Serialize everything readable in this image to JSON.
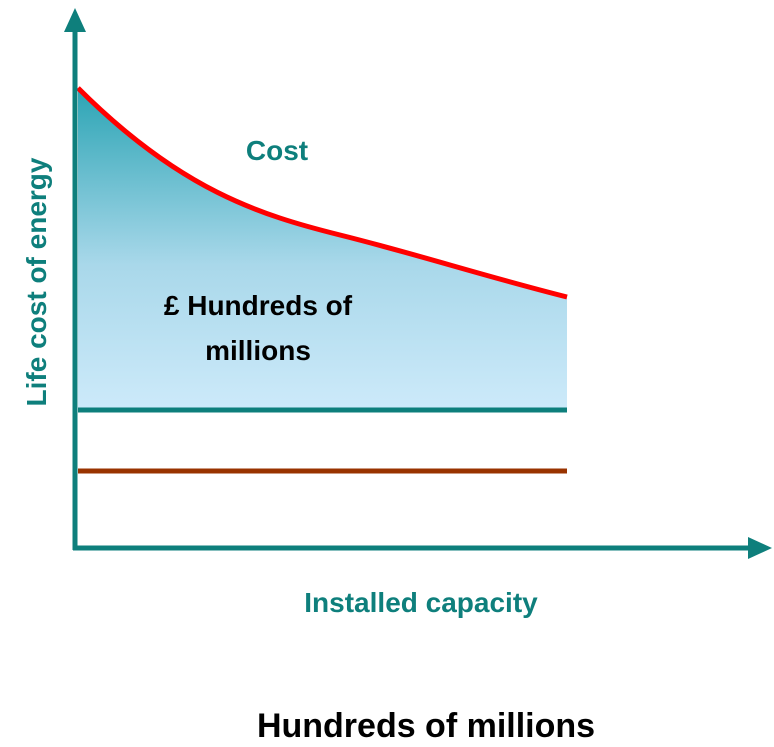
{
  "curve_label": "Cost",
  "area_label": [
    "£ Hundreds of",
    "millions"
  ],
  "y_axis_label": "Life cost of energy",
  "x_axis_label": "Installed capacity",
  "caption": "Hundreds of millions"
}
